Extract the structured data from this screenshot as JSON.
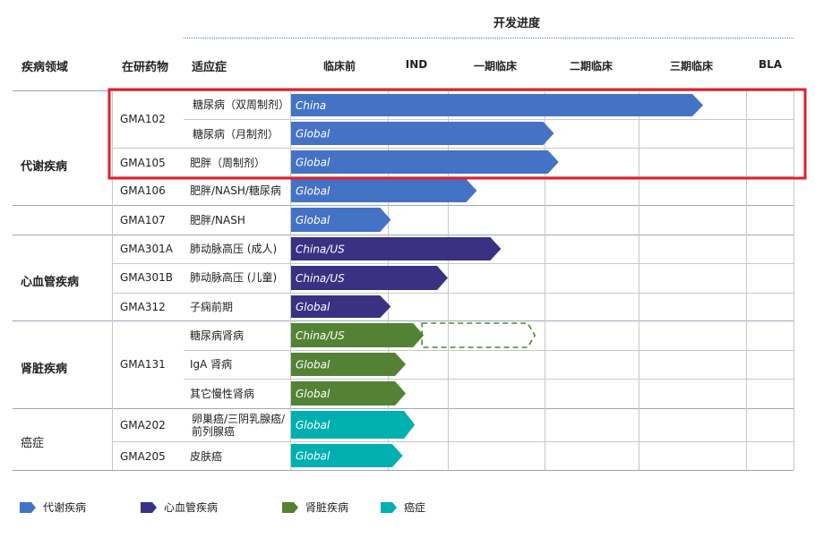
{
  "header": {
    "progress_title": "开发进度",
    "col_area": "疾病领域",
    "col_drug": "在研药物",
    "col_indication": "适应症"
  },
  "stages": [
    "临床前",
    "IND",
    "一期临床",
    "二期临床",
    "三期临床",
    "BLA"
  ],
  "areas": [
    {
      "label": "代谢疾病"
    },
    {
      "label": "心血管疾病"
    },
    {
      "label": "肾脏疾病"
    },
    {
      "label": "癌症"
    }
  ],
  "drugs": [
    {
      "label": "GMA102"
    },
    {
      "label": "GMA105"
    },
    {
      "label": "GMA106"
    },
    {
      "label": "GMA107"
    },
    {
      "label": "GMA301A"
    },
    {
      "label": "GMA301B"
    },
    {
      "label": "GMA312"
    },
    {
      "label": "GMA131"
    },
    {
      "label": "GMA202"
    },
    {
      "label": "GMA205"
    }
  ],
  "colors": {
    "metabolic": "#4472c4",
    "cardio": "#3a3182",
    "renal": "#548235",
    "oncology": "#00b0b0",
    "highlight": "#e0202a",
    "grid": "#c8c8c8"
  },
  "legend": [
    {
      "label": "代谢疾病",
      "color": "#4472c4"
    },
    {
      "label": "心血管疾病",
      "color": "#3a3182"
    },
    {
      "label": "肾脏疾病",
      "color": "#548235"
    },
    {
      "label": "癌症",
      "color": "#00b0b0"
    }
  ],
  "chart_data": {
    "type": "bar",
    "title": "开发进度",
    "stages": [
      "临床前",
      "IND",
      "一期临床",
      "二期临床",
      "三期临床",
      "BLA"
    ],
    "rows": [
      {
        "area": "代谢疾病",
        "drug": "GMA102",
        "indication": "糖尿病（双周制剂）",
        "region": "China",
        "progress": 4.6,
        "category": "metabolic"
      },
      {
        "area": "代谢疾病",
        "drug": "GMA102",
        "indication": "糖尿病（月制剂）",
        "region": "Global",
        "progress": 3.1,
        "category": "metabolic"
      },
      {
        "area": "代谢疾病",
        "drug": "GMA105",
        "indication": "肥胖（周制剂）",
        "region": "Global",
        "progress": 3.15,
        "category": "metabolic"
      },
      {
        "area": "代谢疾病",
        "drug": "GMA106",
        "indication": "肥胖/NASH/糖尿病",
        "region": "Global",
        "progress": 2.3,
        "category": "metabolic"
      },
      {
        "area": "代谢疾病",
        "drug": "GMA107",
        "indication": "肥胖/NASH",
        "region": "Global",
        "progress": 1.05,
        "category": "metabolic"
      },
      {
        "area": "心血管疾病",
        "drug": "GMA301A",
        "indication": "肺动脉高压 (成人)",
        "region": "China/US",
        "progress": 2.55,
        "category": "cardio"
      },
      {
        "area": "心血管疾病",
        "drug": "GMA301B",
        "indication": "肺动脉高压 (儿童)",
        "region": "China/US",
        "progress": 2.0,
        "category": "cardio"
      },
      {
        "area": "心血管疾病",
        "drug": "GMA312",
        "indication": "子痫前期",
        "region": "Global",
        "progress": 1.05,
        "category": "cardio"
      },
      {
        "area": "肾脏疾病",
        "drug": "GMA131",
        "indication": "糖尿病肾病",
        "region": "China/US",
        "progress": 1.6,
        "planned": 2.9,
        "category": "renal"
      },
      {
        "area": "肾脏疾病",
        "drug": "GMA131",
        "indication": "IgA 肾病",
        "region": "Global",
        "progress": 1.3,
        "category": "renal"
      },
      {
        "area": "肾脏疾病",
        "drug": "GMA131",
        "indication": "其它慢性肾病",
        "region": "Global",
        "progress": 1.3,
        "category": "renal"
      },
      {
        "area": "癌症",
        "drug": "GMA202",
        "indication": "卵巢癌/三阴乳腺癌/前列腺癌",
        "region": "Global",
        "progress": 1.45,
        "category": "oncology"
      },
      {
        "area": "癌症",
        "drug": "GMA205",
        "indication": "皮肤癌",
        "region": "Global",
        "progress": 1.25,
        "category": "oncology"
      }
    ]
  }
}
